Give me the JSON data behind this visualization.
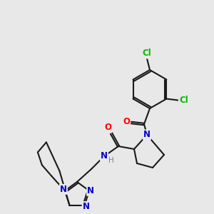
{
  "background_color": "#e8e8e8",
  "bond_color": "#1a1a1a",
  "atom_colors": {
    "N": "#0000cc",
    "O": "#ff0000",
    "Cl": "#00bb00",
    "H": "#6a8a8a",
    "C": "#1a1a1a"
  },
  "figsize": [
    3.0,
    3.0
  ],
  "dpi": 100,
  "bond_lw": 1.5,
  "font_size": 8.5,
  "font_size_small": 7.5
}
